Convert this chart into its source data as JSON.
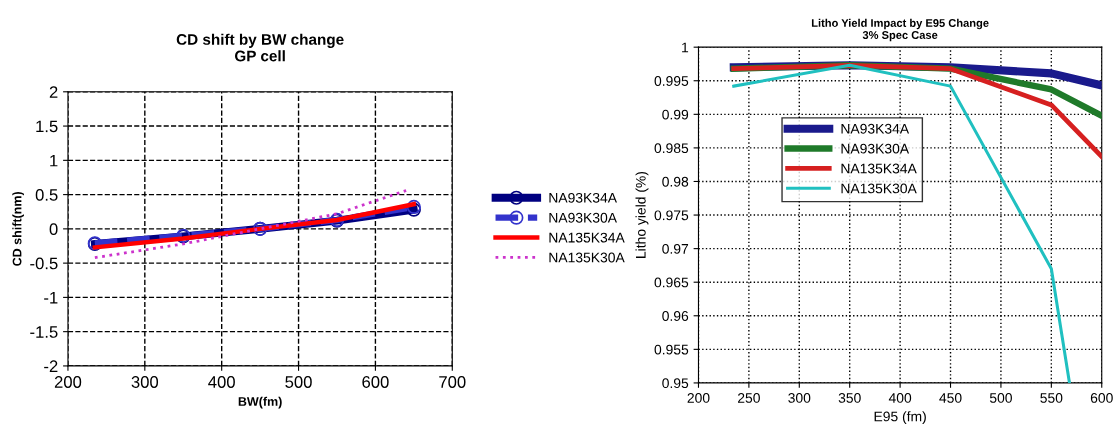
{
  "chart_data": [
    {
      "type": "line",
      "title": "CD shift by BW change\nGP cell",
      "xlabel": "BW(fm)",
      "ylabel": "CD shift(nm)",
      "xlim": [
        200,
        700
      ],
      "xticks": [
        200,
        300,
        400,
        500,
        600,
        700
      ],
      "ylim": [
        -2,
        2
      ],
      "yticks": [
        -2,
        -1.5,
        -1,
        -0.5,
        0,
        0.5,
        1,
        1.5,
        2
      ],
      "grid": true,
      "legend": "right",
      "series": [
        {
          "name": "NA93K34A",
          "color": "#000080",
          "x": [
            235,
            350,
            450,
            550,
            650
          ],
          "values": [
            -0.22,
            -0.11,
            0,
            0.12,
            0.28
          ],
          "marker": "circle",
          "line_style": "solid"
        },
        {
          "name": "NA93K30A",
          "color": "#3333cc",
          "x": [
            235,
            350,
            450,
            550,
            650
          ],
          "values": [
            -0.21,
            -0.1,
            0,
            0.13,
            0.32
          ],
          "marker": "circle",
          "line_style": "dashed"
        },
        {
          "name": "NA135K34A",
          "color": "#ff0000",
          "x": [
            235,
            350,
            450,
            550,
            650
          ],
          "values": [
            -0.27,
            -0.14,
            0,
            0.13,
            0.36
          ],
          "line_style": "solid"
        },
        {
          "name": "NA135K30A",
          "color": "#cc33cc",
          "x": [
            235,
            350,
            450,
            550,
            640
          ],
          "values": [
            -0.42,
            -0.22,
            0,
            0.22,
            0.56
          ],
          "line_style": "dotted"
        }
      ]
    },
    {
      "type": "line",
      "title": "Litho Yield Impact by E95 Change\n3% Spec Case",
      "xlabel": "E95 (fm)",
      "ylabel": "Litho yield (%)",
      "xlim": [
        200,
        600
      ],
      "xticks": [
        200,
        250,
        300,
        350,
        400,
        450,
        500,
        550,
        600
      ],
      "ylim": [
        0.95,
        1
      ],
      "yticks": [
        0.95,
        0.955,
        0.96,
        0.965,
        0.97,
        0.975,
        0.98,
        0.985,
        0.99,
        0.995,
        1
      ],
      "grid": true,
      "legend": "top left",
      "series": [
        {
          "name": "NA93K34A",
          "color": "#1a1a8c",
          "x": [
            235,
            350,
            450,
            550,
            600
          ],
          "values": [
            0.997,
            0.9973,
            0.997,
            0.9961,
            0.9943
          ]
        },
        {
          "name": "NA93K30A",
          "color": "#1f7a2a",
          "x": [
            235,
            350,
            450,
            550,
            600
          ],
          "values": [
            0.9968,
            0.9973,
            0.9968,
            0.9937,
            0.9898
          ]
        },
        {
          "name": "NA135K34A",
          "color": "#d62020",
          "x": [
            235,
            350,
            450,
            550,
            600
          ],
          "values": [
            0.9968,
            0.9973,
            0.9968,
            0.9914,
            0.9837
          ]
        },
        {
          "name": "NA135K30A",
          "color": "#20c0c0",
          "x": [
            235,
            350,
            450,
            550,
            568
          ],
          "values": [
            0.9942,
            0.9973,
            0.9942,
            0.967,
            0.95
          ]
        }
      ]
    }
  ]
}
